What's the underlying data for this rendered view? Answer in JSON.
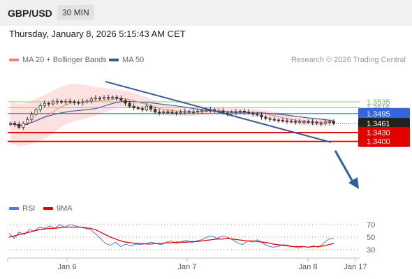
{
  "header": {
    "symbol": "GBP/USD",
    "timeframe": "30 MIN",
    "datetime": "Thursday, January 8, 2026 5:15:43 AM CET"
  },
  "legend": {
    "ma20_label": "MA 20 + Bollinger Bands",
    "ma50_label": "MA 50",
    "credit": "Research © 2026 Trading Central",
    "rsi_label": "RSI",
    "rsi_ma_label": "9MA"
  },
  "colors": {
    "ma20": "#f08080",
    "bollinger_fill": "#fde0e0",
    "ma50": "#2e5c9a",
    "trendline": "#3a5a9a",
    "arrow": "#2f5f9a",
    "resistance": "#8fce6f",
    "pivot": "#3366dd",
    "support": "#e30000",
    "current_price_bg": "#222222",
    "candle_up": "#333333",
    "candle_down": "#333333",
    "rsi": "#5577dd",
    "rsi_ma": "#e30000"
  },
  "chart_data": [
    {
      "type": "candlestick",
      "x_ticks": [
        "Jan 6",
        "Jan 7",
        "Jan 8",
        "Jan 17"
      ],
      "price_levels": [
        {
          "name": "resistance-2",
          "value": "1.3535"
        },
        {
          "name": "resistance-1",
          "value": "1.3515"
        },
        {
          "name": "pivot",
          "value": "1.3495"
        },
        {
          "name": "current-price",
          "value": "1.3461"
        },
        {
          "name": "support-1",
          "value": "1.3430"
        },
        {
          "name": "support-2",
          "value": "1.3400"
        }
      ],
      "series": [
        {
          "name": "MA 20 + Bollinger Bands"
        },
        {
          "name": "MA 50"
        }
      ],
      "candles_close": [
        1.3462,
        1.3458,
        1.3448,
        1.3462,
        1.3475,
        1.3492,
        1.3508,
        1.3522,
        1.353,
        1.3528,
        1.3535,
        1.3537,
        1.3534,
        1.3537,
        1.3536,
        1.3533,
        1.3531,
        1.3535,
        1.3538,
        1.3545,
        1.3548,
        1.3547,
        1.355,
        1.3549,
        1.3551,
        1.3547,
        1.354,
        1.353,
        1.352,
        1.3515,
        1.3512,
        1.3508,
        1.352,
        1.351,
        1.35,
        1.3498,
        1.3501,
        1.35,
        1.3498,
        1.3497,
        1.35,
        1.3502,
        1.35,
        1.3501,
        1.3503,
        1.3506,
        1.3507,
        1.3508,
        1.3503,
        1.3504,
        1.3497,
        1.3494,
        1.3498,
        1.3501,
        1.3503,
        1.35,
        1.3497,
        1.3493,
        1.349,
        1.3483,
        1.3478,
        1.3475,
        1.3473,
        1.3472,
        1.347,
        1.3469,
        1.3468,
        1.3466,
        1.3467,
        1.3467,
        1.3466,
        1.3465,
        1.3462,
        1.3461,
        1.3466,
        1.3468,
        1.3461
      ],
      "forecast_target": "1.3400"
    },
    {
      "type": "line",
      "name": "RSI",
      "y_ticks": [
        "70",
        "50",
        "30"
      ],
      "ylim": [
        20,
        80
      ],
      "series": [
        {
          "name": "RSI",
          "values": [
            56,
            48,
            58,
            54,
            62,
            60,
            66,
            64,
            68,
            64,
            70,
            66,
            70,
            68,
            66,
            64,
            62,
            56,
            48,
            40,
            37,
            42,
            35,
            39,
            36,
            39,
            38,
            40,
            42,
            40,
            38,
            42,
            44,
            40,
            43,
            45,
            41,
            44,
            46,
            50,
            52,
            48,
            52,
            50,
            46,
            41,
            38,
            44,
            42,
            46,
            40,
            36,
            34,
            35,
            38,
            37,
            35,
            33,
            35,
            34,
            36,
            34,
            40,
            47,
            48
          ]
        },
        {
          "name": "9MA",
          "values": [
            50,
            52,
            54,
            56,
            58,
            60,
            62,
            63,
            64,
            64,
            65,
            66,
            66,
            66,
            66,
            65,
            64,
            62,
            58,
            54,
            50,
            47,
            44,
            42,
            41,
            40,
            40,
            39,
            39,
            40,
            40,
            41,
            41,
            42,
            42,
            42,
            43,
            43,
            44,
            45,
            46,
            47,
            47,
            48,
            47,
            46,
            45,
            44,
            44,
            43,
            42,
            41,
            39,
            38,
            37,
            36,
            35,
            35,
            35,
            34,
            35,
            35,
            36,
            38,
            40
          ]
        }
      ]
    }
  ]
}
